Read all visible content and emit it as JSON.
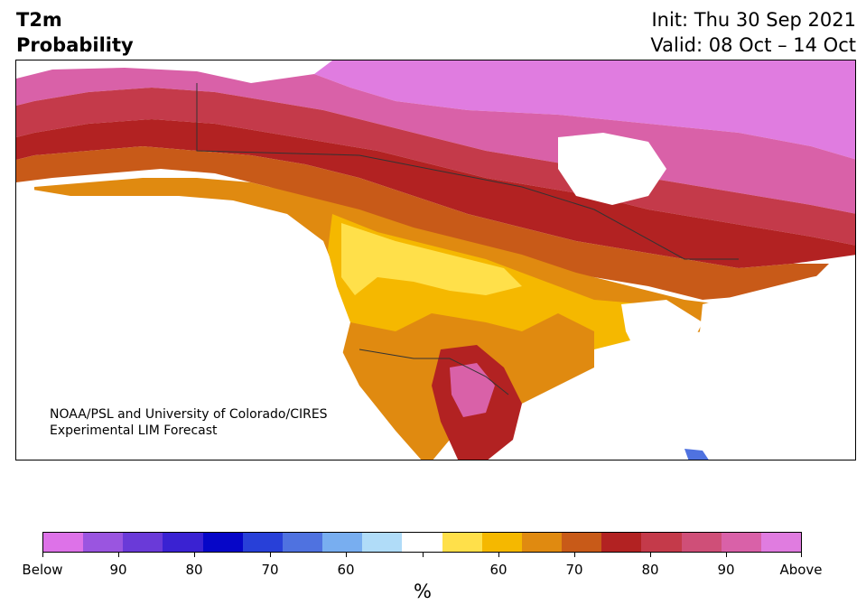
{
  "header": {
    "title_line1": "T2m",
    "title_line2": "Probability",
    "init": "Init: Thu 30 Sep 2021",
    "valid": "Valid: 08 Oct – 14 Oct"
  },
  "map": {
    "region": "North America",
    "credit_line1": "NOAA/PSL and University of Colorado/CIRES",
    "credit_line2": "Experimental LIM Forecast"
  },
  "colorbar": {
    "units": "%",
    "colors": [
      "#dd72e8",
      "#9a55e0",
      "#6a3ad8",
      "#3a22d2",
      "#0606c8",
      "#2840d8",
      "#4f72e0",
      "#78aef0",
      "#b0dcf8",
      "#ffffff",
      "#ffe04a",
      "#f5b800",
      "#e08a10",
      "#c85a18",
      "#b22222",
      "#c43a4a",
      "#cf4f78",
      "#d961a8",
      "#e07ce0"
    ],
    "tick_labels": [
      "Below",
      "90",
      "80",
      "70",
      "60",
      "",
      "60",
      "70",
      "80",
      "90",
      "Above"
    ]
  }
}
